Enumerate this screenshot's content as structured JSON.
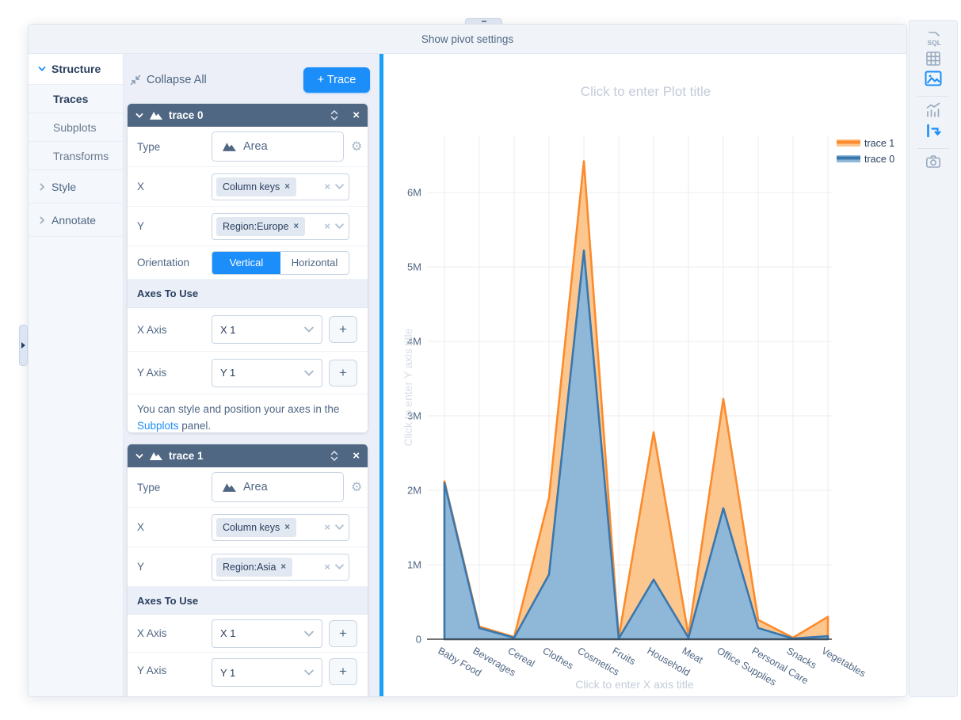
{
  "top_bar": {
    "tab_label": "Show pivot settings"
  },
  "sidebar": {
    "items": [
      {
        "label": "Structure"
      },
      {
        "label": "Traces"
      },
      {
        "label": "Subplots"
      },
      {
        "label": "Transforms"
      },
      {
        "label": "Style"
      },
      {
        "label": "Annotate"
      }
    ]
  },
  "panel": {
    "collapse_all_label": "Collapse All",
    "add_trace_label": "+ Trace",
    "traces": [
      {
        "title": "trace 0",
        "type_label": "Type",
        "type_value": "Area",
        "x_label": "X",
        "x_chip": "Column keys",
        "y_label": "Y",
        "y_chip": "Region:Europe",
        "orientation_label": "Orientation",
        "orientation_options": [
          "Vertical",
          "Horizontal"
        ],
        "orientation_selected": "Vertical",
        "axes_header": "Axes To Use",
        "x_axis_label": "X Axis",
        "x_axis_value": "X 1",
        "y_axis_label": "Y Axis",
        "y_axis_value": "Y 1",
        "note_prefix": "You can style and position your axes in the ",
        "note_link": "Subplots",
        "note_suffix": " panel."
      },
      {
        "title": "trace 1",
        "type_label": "Type",
        "type_value": "Area",
        "x_label": "X",
        "x_chip": "Column keys",
        "y_label": "Y",
        "y_chip": "Region:Asia",
        "axes_header": "Axes To Use",
        "x_axis_label": "X Axis",
        "x_axis_value": "X 1",
        "y_axis_label": "Y Axis",
        "y_axis_value": "Y 1"
      }
    ]
  },
  "right_toolbar": {
    "active_color": "#1c8ef9",
    "inactive_color": "#9aa9bf",
    "icons": [
      "sql",
      "data-table",
      "chart-image",
      "chart-stats",
      "pivot-flow",
      "camera"
    ]
  },
  "chart_data": {
    "type": "area",
    "title": "Click to enter Plot title",
    "xlabel": "Click to enter X axis title",
    "ylabel": "Click to enter Y axis title",
    "grid": true,
    "legend_position": "top-right",
    "categories": [
      "Baby Food",
      "Beverages",
      "Cereal",
      "Clothes",
      "Cosmetics",
      "Fruits",
      "Household",
      "Meat",
      "Office Supplies",
      "Personal Care",
      "Snacks",
      "Vegetables"
    ],
    "yticks": [
      "0",
      "1M",
      "2M",
      "3M",
      "4M",
      "5M",
      "6M"
    ],
    "ylim": [
      0,
      6770000
    ],
    "series": [
      {
        "name": "trace 1",
        "source": "Region:Asia",
        "line_color": "#fb8b2c",
        "fill_color": "#fcc68f",
        "values": [
          2120000,
          170000,
          30000,
          1900000,
          6420000,
          20000,
          2780000,
          50000,
          3230000,
          260000,
          20000,
          300000
        ]
      },
      {
        "name": "trace 0",
        "source": "Region:Europe",
        "line_color": "#3a77ad",
        "fill_color": "#8fb8d8",
        "values": [
          2100000,
          150000,
          20000,
          870000,
          5220000,
          10000,
          800000,
          20000,
          1760000,
          150000,
          10000,
          40000
        ]
      }
    ]
  }
}
